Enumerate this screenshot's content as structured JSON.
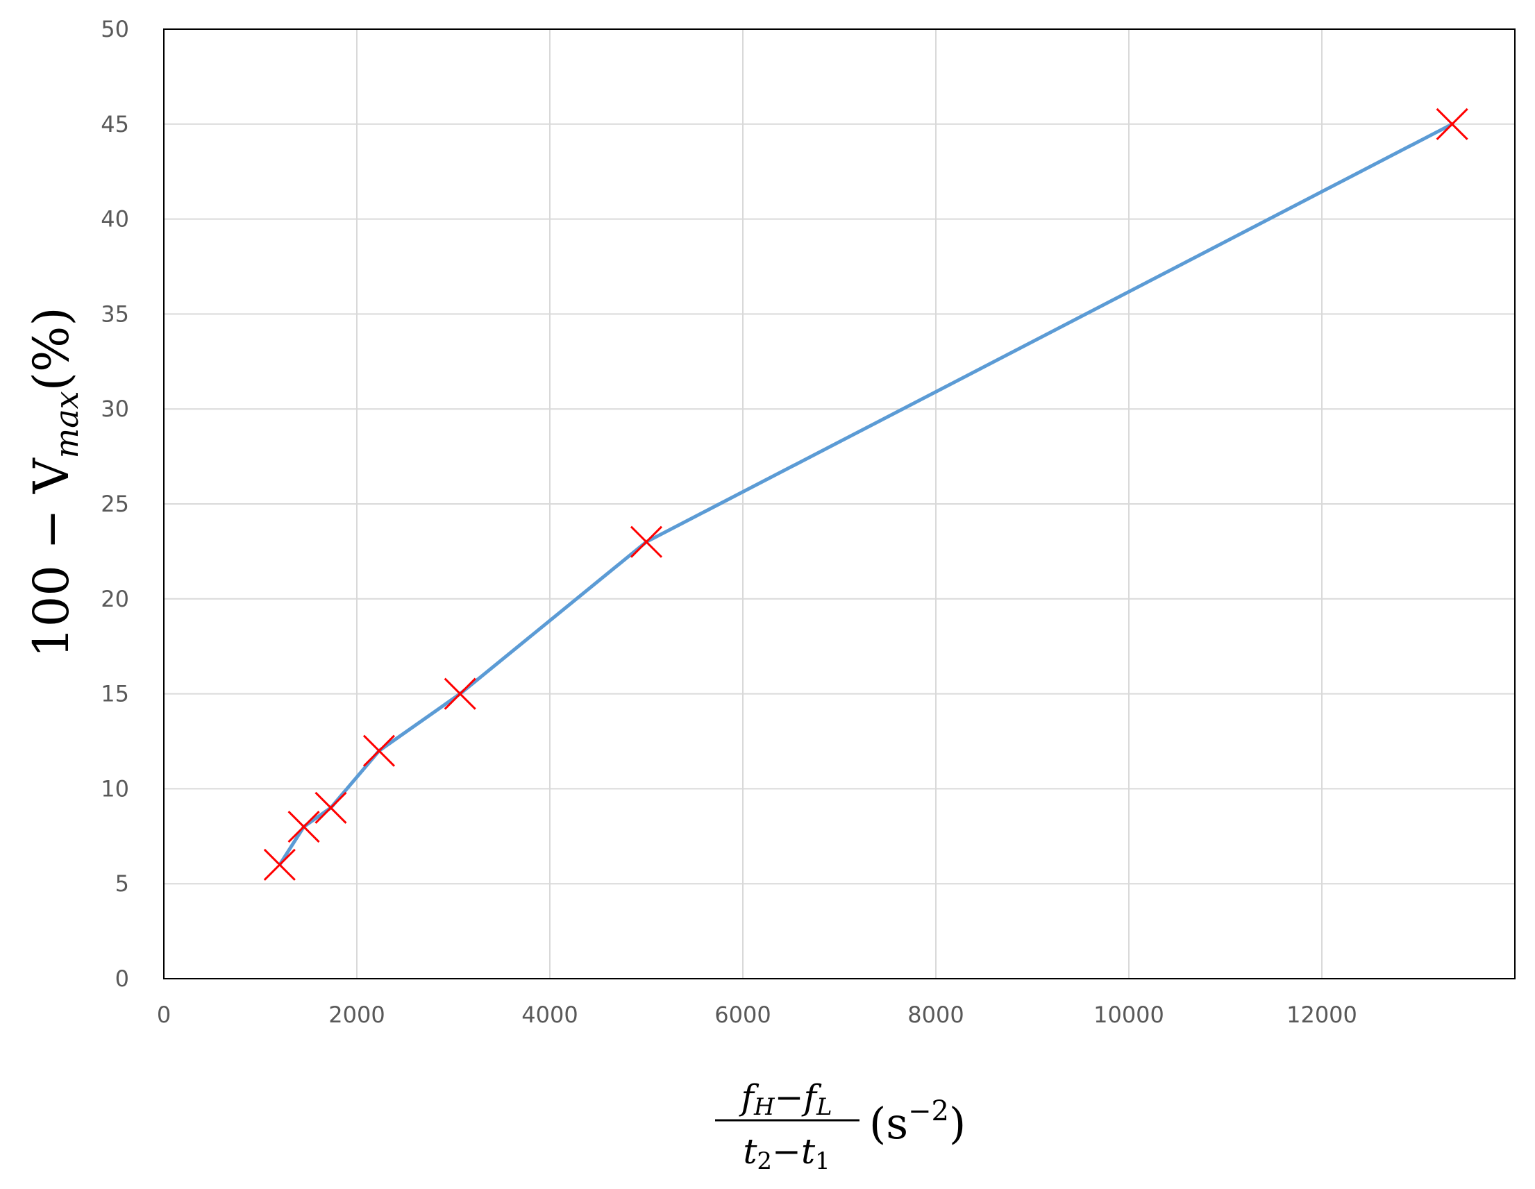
{
  "chart_data": {
    "type": "line",
    "title": "",
    "xlabel": {
      "numerator": "fH−fL",
      "numerator_parts": [
        "f",
        "H",
        "−f",
        "L"
      ],
      "denominator": "t2−t1",
      "denominator_parts": [
        "t",
        "2",
        "−t",
        "1"
      ],
      "unit": "(s−2)",
      "unit_parts": [
        "(s",
        "−2",
        ")"
      ]
    },
    "ylabel": {
      "text": "100 − Vmax(%)",
      "prefix": "100 − V",
      "subscript": "max",
      "suffix": "(%)"
    },
    "xlim": [
      0,
      14000
    ],
    "ylim": [
      0,
      50
    ],
    "xticks": [
      0,
      2000,
      4000,
      6000,
      8000,
      10000,
      12000
    ],
    "yticks": [
      0,
      5,
      10,
      15,
      20,
      25,
      30,
      35,
      40,
      45,
      50
    ],
    "grid": true,
    "legend": "none",
    "series": [
      {
        "x": [
          1200,
          1450,
          1730,
          2230,
          3070,
          5000,
          13350
        ],
        "y": [
          6,
          8,
          9,
          12,
          15,
          23,
          45
        ],
        "line_color": "#5B9BD5",
        "marker": "x",
        "marker_color": "#FF0000"
      }
    ]
  }
}
